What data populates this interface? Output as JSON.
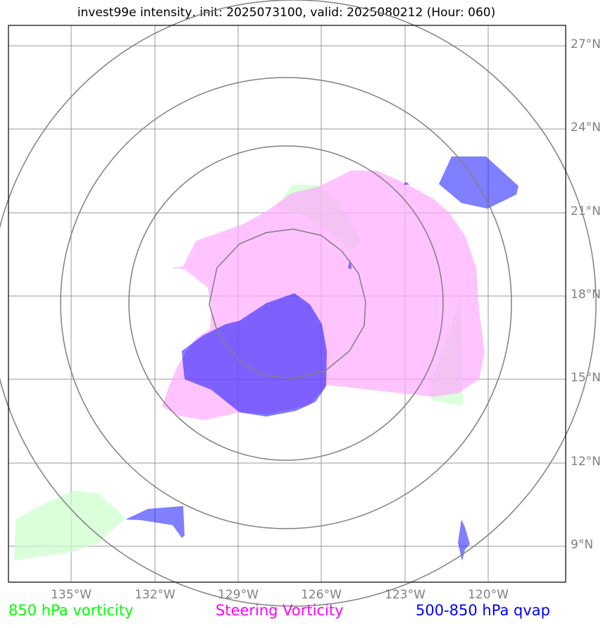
{
  "title": "invest99e intensity, init: 2025073100, valid: 2025080212 (Hour: 060)",
  "latitude_labels": [
    "27°N",
    "24°N",
    "21°N",
    "18°N",
    "15°N",
    "12°N",
    "9°N"
  ],
  "longitude_labels": [
    "135°W",
    "132°W",
    "129°W",
    "126°W",
    "123°W",
    "120°W"
  ],
  "legend": [
    {
      "label": "850 hPa vorticity",
      "color": "#00ff00"
    },
    {
      "label": "Steering Vorticity",
      "color": "#ff00ff"
    },
    {
      "label": "500-850 hPa qvap",
      "color": "#0000ff"
    }
  ],
  "fields": {
    "vorticity_850": {
      "name": "850 hPa vorticity",
      "fill": "#ccffcc"
    },
    "steering_vorticity": {
      "name": "Steering Vorticity",
      "fill": "#ffaaff"
    },
    "qvap_500_850": {
      "name": "500-850 hPa qvap",
      "fill": "#0000ff"
    }
  },
  "colors": {
    "gridline": "#999999",
    "range_ring": "#808080",
    "frame": "#000000",
    "tick_text": "#808080"
  }
}
